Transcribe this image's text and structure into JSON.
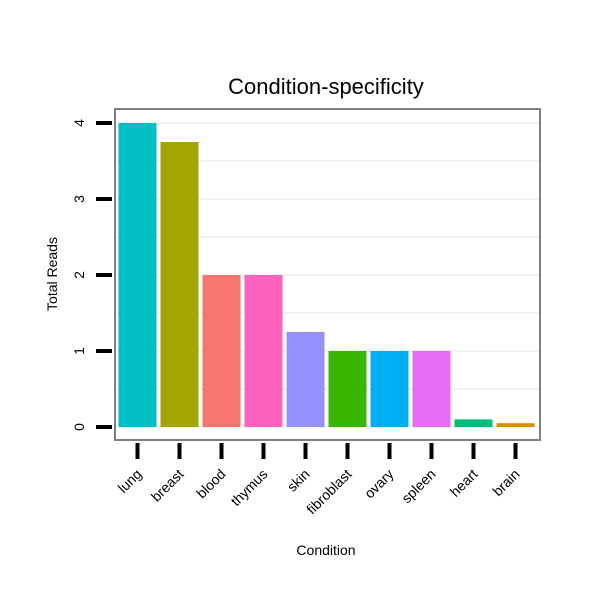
{
  "chart_data": {
    "type": "bar",
    "title": "Condition-specificity",
    "xlabel": "Condition",
    "ylabel": "Total Reads",
    "categories": [
      "lung",
      "breast",
      "blood",
      "thymus",
      "skin",
      "fibroblast",
      "ovary",
      "spleen",
      "heart",
      "brain"
    ],
    "values": [
      4.0,
      3.75,
      2.0,
      2.0,
      1.25,
      1.0,
      1.0,
      1.0,
      0.1,
      0.05
    ],
    "colors": [
      "#00BFC4",
      "#A3A500",
      "#F8766D",
      "#FF62BC",
      "#9590FF",
      "#39B600",
      "#00B0F6",
      "#E76BF3",
      "#00BF7D",
      "#D89000"
    ],
    "ylim": [
      0,
      4
    ],
    "yticks": [
      "0",
      "1",
      "2",
      "3",
      "4"
    ],
    "grid": true,
    "legend": "none"
  }
}
